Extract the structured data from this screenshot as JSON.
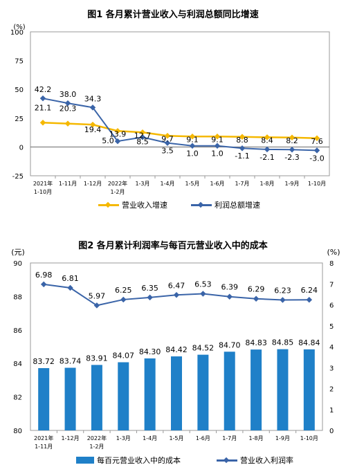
{
  "chart_data": [
    {
      "type": "line",
      "title": "图1  各月累计营业收入与利润总额同比增速",
      "unit_label": "(%)",
      "categories": [
        [
          "2021年",
          "1-10月"
        ],
        [
          "1-11月"
        ],
        [
          "1-12月"
        ],
        [
          "2022年",
          "1-2月"
        ],
        [
          "1-3月"
        ],
        [
          "1-4月"
        ],
        [
          "1-5月"
        ],
        [
          "1-6月"
        ],
        [
          "1-7月"
        ],
        [
          "1-8月"
        ],
        [
          "1-9月"
        ],
        [
          "1-10月"
        ]
      ],
      "ylim": [
        -25,
        100
      ],
      "yticks": [
        -25,
        0,
        25,
        50,
        75,
        100
      ],
      "series": [
        {
          "name": "营业收入增速",
          "color": "#f5b800",
          "values": [
            21.1,
            20.3,
            19.4,
            13.9,
            12.7,
            9.7,
            9.1,
            9.1,
            8.8,
            8.4,
            8.2,
            7.6
          ],
          "labels": [
            "21.1",
            "20.3",
            "19.4",
            "13.9",
            "12.7",
            "9.7",
            "9.1",
            "9.1",
            "8.8",
            "8.4",
            "8.2",
            "7.6"
          ]
        },
        {
          "name": "利润总额增速",
          "color": "#3a64a8",
          "values": [
            42.2,
            38.0,
            34.3,
            5.0,
            8.5,
            3.5,
            1.0,
            1.0,
            -1.1,
            -2.1,
            -2.3,
            -3.0
          ],
          "labels": [
            "42.2",
            "38.0",
            "34.3",
            "5.0",
            "8.5",
            "3.5",
            "1.0",
            "1.0",
            "-1.1",
            "-2.1",
            "-2.3",
            "-3.0"
          ]
        }
      ],
      "legend_position": "bottom"
    },
    {
      "type": "bar+line",
      "title": "图2  各月累计利润率与每百元营业收入中的成本",
      "left_unit_label": "(元)",
      "right_unit_label": "(%)",
      "categories": [
        [
          "2021年",
          "1-11月"
        ],
        [
          "1-12月"
        ],
        [
          "2022年",
          "1-2月"
        ],
        [
          "1-3月"
        ],
        [
          "1-4月"
        ],
        [
          "1-5月"
        ],
        [
          "1-6月"
        ],
        [
          "1-7月"
        ],
        [
          "1-8月"
        ],
        [
          "1-9月"
        ],
        [
          "1-10月"
        ]
      ],
      "left_ylim": [
        80,
        90
      ],
      "left_yticks": [
        80,
        82,
        84,
        86,
        88,
        90
      ],
      "right_ylim": [
        0,
        8
      ],
      "right_yticks": [
        0,
        1,
        2,
        3,
        4,
        5,
        6,
        7,
        8
      ],
      "series": [
        {
          "name": "每百元营业收入中的成本",
          "type": "bar",
          "axis": "left",
          "color": "#1f80c8",
          "values": [
            83.72,
            83.74,
            83.91,
            84.07,
            84.3,
            84.42,
            84.52,
            84.7,
            84.83,
            84.85,
            84.84
          ],
          "labels": [
            "83.72",
            "83.74",
            "83.91",
            "84.07",
            "84.30",
            "84.42",
            "84.52",
            "84.70",
            "84.83",
            "84.85",
            "84.84"
          ]
        },
        {
          "name": "营业收入利润率",
          "type": "line",
          "axis": "right",
          "color": "#3a64a8",
          "values": [
            6.98,
            6.81,
            5.97,
            6.25,
            6.35,
            6.47,
            6.53,
            6.39,
            6.29,
            6.23,
            6.24
          ],
          "labels": [
            "6.98",
            "6.81",
            "5.97",
            "6.25",
            "6.35",
            "6.47",
            "6.53",
            "6.39",
            "6.29",
            "6.23",
            "6.24"
          ]
        }
      ],
      "legend_position": "bottom"
    }
  ]
}
